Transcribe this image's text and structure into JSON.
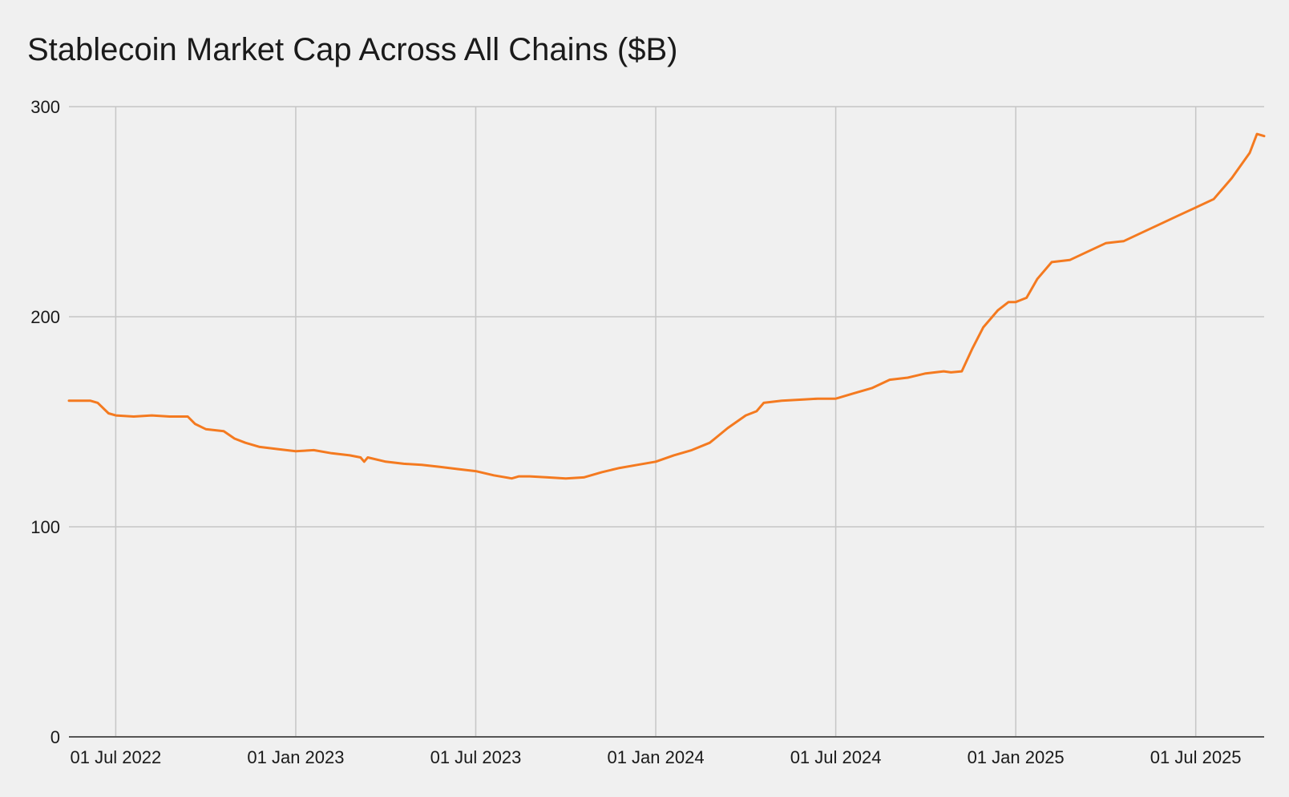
{
  "chart_data": {
    "type": "line",
    "title": "Stablecoin Market Cap Across All Chains ($B)",
    "xlabel": "",
    "ylabel": "",
    "ylim": [
      0,
      300
    ],
    "grid": true,
    "legend": "none",
    "line_color": "#f47a20",
    "y_ticks": [
      {
        "value": 0,
        "label": "0"
      },
      {
        "value": 100,
        "label": "100"
      },
      {
        "value": 200,
        "label": "200"
      },
      {
        "value": 300,
        "label": "300"
      }
    ],
    "x_ticks": [
      {
        "value": 2022.5,
        "label": "01 Jul 2022"
      },
      {
        "value": 2023.0,
        "label": "01 Jan 2023"
      },
      {
        "value": 2023.5,
        "label": "01 Jul 2023"
      },
      {
        "value": 2024.0,
        "label": "01 Jan 2024"
      },
      {
        "value": 2024.5,
        "label": "01 Jul 2024"
      },
      {
        "value": 2025.0,
        "label": "01 Jan 2025"
      },
      {
        "value": 2025.5,
        "label": "01 Jul 2025"
      }
    ],
    "xlim": [
      2022.37,
      2025.69
    ],
    "series": [
      {
        "name": "Stablecoin Market Cap ($B)",
        "x": [
          2022.37,
          2022.4,
          2022.43,
          2022.45,
          2022.48,
          2022.5,
          2022.55,
          2022.6,
          2022.65,
          2022.7,
          2022.72,
          2022.75,
          2022.8,
          2022.83,
          2022.86,
          2022.9,
          2022.95,
          2023.0,
          2023.05,
          2023.1,
          2023.15,
          2023.18,
          2023.19,
          2023.2,
          2023.25,
          2023.3,
          2023.35,
          2023.4,
          2023.45,
          2023.5,
          2023.55,
          2023.6,
          2023.62,
          2023.65,
          2023.7,
          2023.75,
          2023.8,
          2023.85,
          2023.9,
          2023.95,
          2024.0,
          2024.05,
          2024.1,
          2024.15,
          2024.2,
          2024.25,
          2024.28,
          2024.3,
          2024.35,
          2024.4,
          2024.45,
          2024.5,
          2024.55,
          2024.6,
          2024.65,
          2024.7,
          2024.75,
          2024.8,
          2024.82,
          2024.85,
          2024.88,
          2024.91,
          2024.95,
          2024.98,
          2025.0,
          2025.03,
          2025.06,
          2025.1,
          2025.15,
          2025.2,
          2025.25,
          2025.3,
          2025.35,
          2025.4,
          2025.45,
          2025.5,
          2025.55,
          2025.6,
          2025.65,
          2025.67,
          2025.69
        ],
        "values": [
          160,
          160,
          160,
          159,
          154,
          153,
          152.5,
          153,
          152.5,
          152.5,
          149,
          146.5,
          145.5,
          142,
          140,
          138,
          137,
          136,
          136.5,
          135,
          134,
          133,
          131,
          133,
          131,
          130,
          129.5,
          128.5,
          127.5,
          126.5,
          124.5,
          123,
          124,
          124,
          123.5,
          123,
          123.5,
          126,
          128,
          129.5,
          131,
          134,
          136.5,
          140,
          147,
          153,
          155,
          159,
          160,
          160.5,
          161,
          161,
          163.5,
          166,
          170,
          171,
          173,
          174,
          173.5,
          174,
          185,
          195,
          203,
          207,
          207,
          209,
          218,
          226,
          227,
          231,
          235,
          236,
          240,
          244,
          248,
          252,
          256,
          266,
          278,
          287,
          286
        ]
      }
    ]
  }
}
